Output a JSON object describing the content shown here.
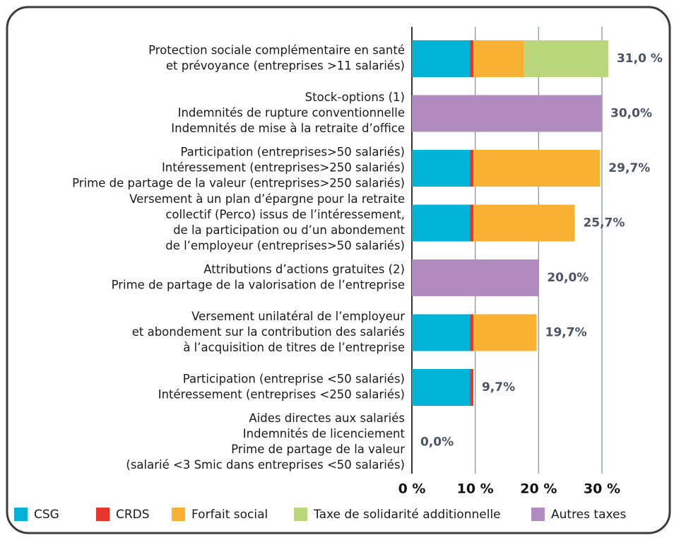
{
  "chart_data": {
    "type": "stacked-bar-horizontal",
    "categories": [
      [
        "Protection sociale complémentaire en santé",
        "et prévoyance (entreprises >11 salariés)"
      ],
      [
        "Stock-options (1)",
        "Indemnités de rupture conventionnelle",
        "Indemnités de mise à la retraite d’office"
      ],
      [
        "Participation (entreprises>50 salariés)",
        "Intéressement (entreprises>250 salariés)",
        "Prime de partage de la valeur (entreprises>250 salariés)"
      ],
      [
        "Versement à un plan d’épargne pour la retraite",
        "collectif (Perco) issus de l’intéressement,",
        "de la participation ou d’un abondement",
        "de l’employeur (entreprises>50 salariés)"
      ],
      [
        "Attributions d’actions gratuites (2)",
        "Prime de partage de la valorisation de l’entreprise"
      ],
      [
        "Versement unilatéral de l’employeur",
        "et abondement sur la contribution des salariés",
        "à l’acquisition de titres de l’entreprise"
      ],
      [
        "Participation (entreprise <50 salariés)",
        "Intéressement (entreprises <250 salariés)"
      ],
      [
        "Aides directes aux salariés",
        "Indemnités de licenciement",
        "Prime de partage de la valeur",
        "(salarié <3 Smic dans entreprises <50 salariés)"
      ]
    ],
    "series": [
      {
        "name": "CSG",
        "color": "#00b4d8",
        "values": [
          9.2,
          null,
          9.2,
          9.2,
          null,
          9.2,
          9.2,
          null
        ]
      },
      {
        "name": "CRDS",
        "color": "#e8352b",
        "values": [
          0.5,
          null,
          0.5,
          0.5,
          null,
          0.5,
          0.5,
          null
        ]
      },
      {
        "name": "Forfait social",
        "color": "#f8b133",
        "values": [
          8,
          null,
          20,
          16,
          null,
          10,
          null,
          null
        ]
      },
      {
        "name": "Taxe de solidarité additionnelle",
        "color": "#b9d67b",
        "values": [
          13.3,
          null,
          null,
          null,
          null,
          null,
          null,
          null
        ]
      },
      {
        "name": "Autres taxes",
        "color": "#b28cc0",
        "values": [
          null,
          30,
          null,
          null,
          20,
          null,
          null,
          null
        ]
      }
    ],
    "totals": [
      31.0,
      30.0,
      29.7,
      25.7,
      20.0,
      19.7,
      9.7,
      0.0
    ],
    "total_labels": [
      "31,0 %",
      "30,0%",
      "29,7%",
      "25,7%",
      "20,0%",
      "19,7%",
      "9,7%",
      "0,0%"
    ],
    "xlim": [
      0,
      30
    ],
    "xticks": [
      {
        "value": 0,
        "label": "0 %"
      },
      {
        "value": 10,
        "label": "10 %"
      },
      {
        "value": 20,
        "label": "20 %"
      },
      {
        "value": 30,
        "label": "30 %"
      }
    ],
    "grid": true
  }
}
